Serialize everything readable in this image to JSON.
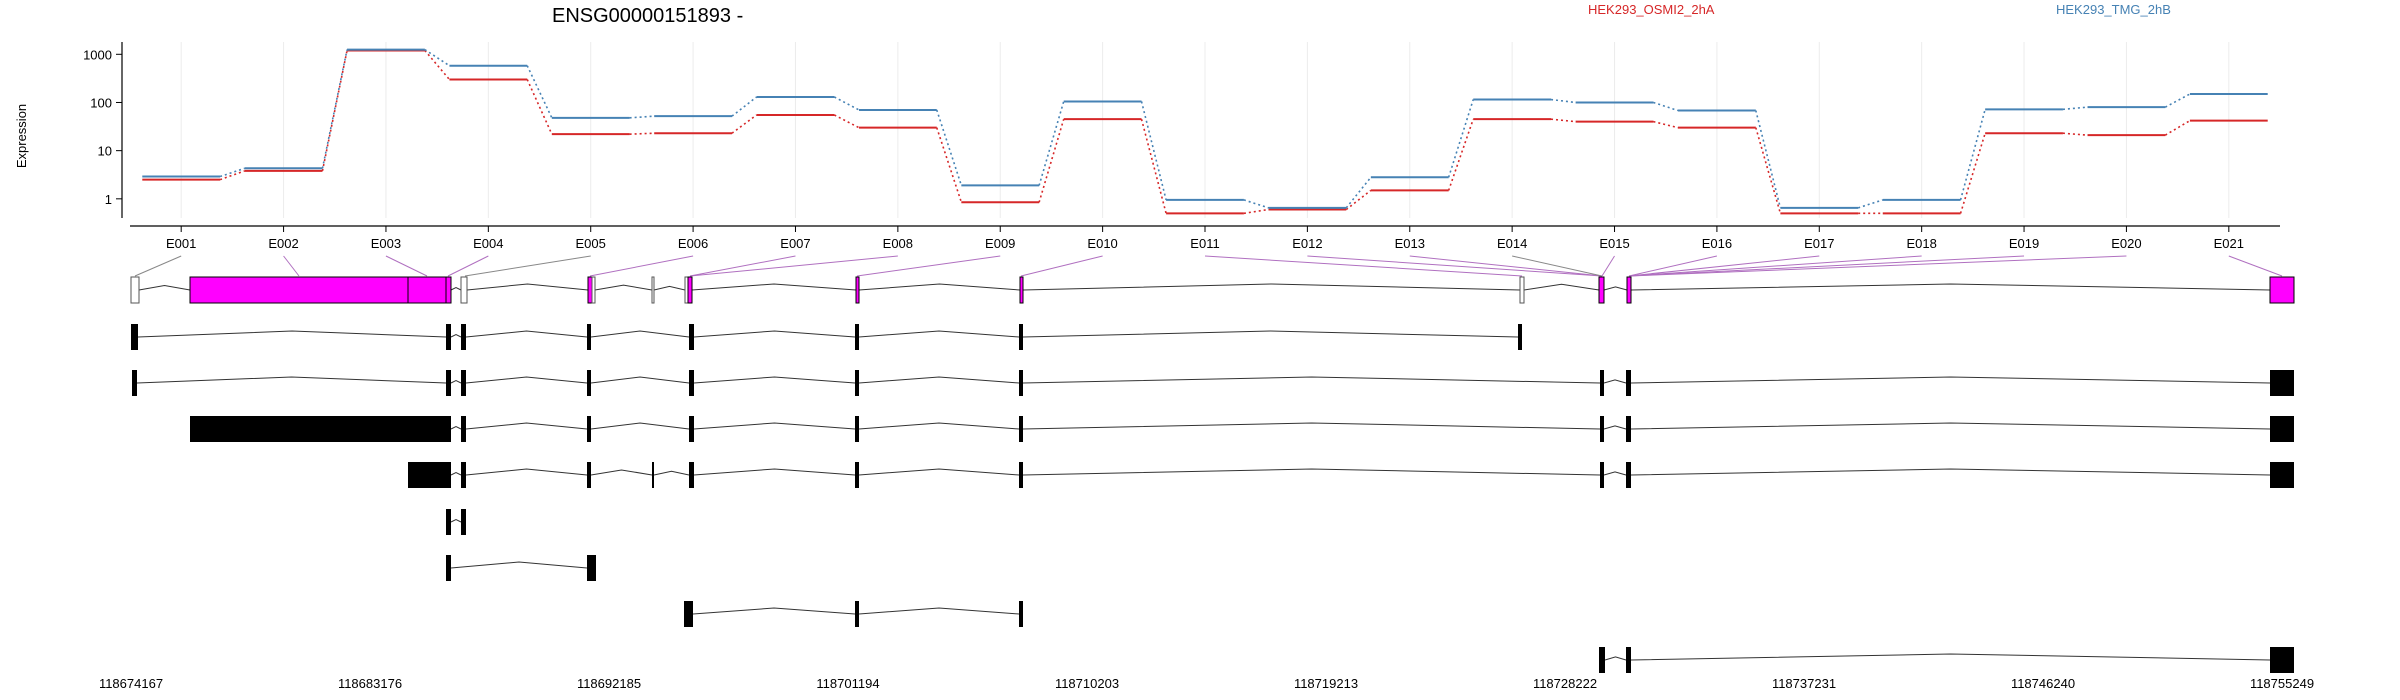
{
  "chart_data": {
    "type": "line",
    "title": "ENSG00000151893 -",
    "ylabel": "Expression",
    "yscale": "log",
    "yticks": [
      1,
      10,
      100,
      1000
    ],
    "ylim": [
      0.4,
      1800
    ],
    "categories": [
      "E001",
      "E002",
      "E003",
      "E004",
      "E005",
      "E006",
      "E007",
      "E008",
      "E009",
      "E010",
      "E011",
      "E012",
      "E013",
      "E014",
      "E015",
      "E016",
      "E017",
      "E018",
      "E019",
      "E020",
      "E021"
    ],
    "series": [
      {
        "name": "HEK293_OSMI2_2hA",
        "color": "#d62728",
        "values": [
          2.5,
          3.8,
          1200,
          300,
          22,
          23,
          55,
          30,
          0.85,
          45,
          0.5,
          0.6,
          1.5,
          45,
          40,
          30,
          0.5,
          0.5,
          23,
          21,
          42
        ]
      },
      {
        "name": "HEK293_TMG_2hB",
        "color": "#4682b4",
        "values": [
          2.9,
          4.3,
          1250,
          580,
          48,
          52,
          130,
          70,
          1.9,
          105,
          0.95,
          0.65,
          2.8,
          115,
          100,
          68,
          0.65,
          0.95,
          72,
          80,
          150
        ]
      }
    ],
    "grid": true,
    "legend_position": "top-right",
    "genomic_axis": {
      "ticks": [
        "118674167",
        "118683176",
        "118692185",
        "118701194",
        "118710203",
        "118719213",
        "118728222",
        "118737231",
        "118746240",
        "118755249"
      ]
    }
  },
  "colors": {
    "exon_highlight": "#ff00ff",
    "exon_dark": "#000000",
    "connector": "#b070c0"
  }
}
